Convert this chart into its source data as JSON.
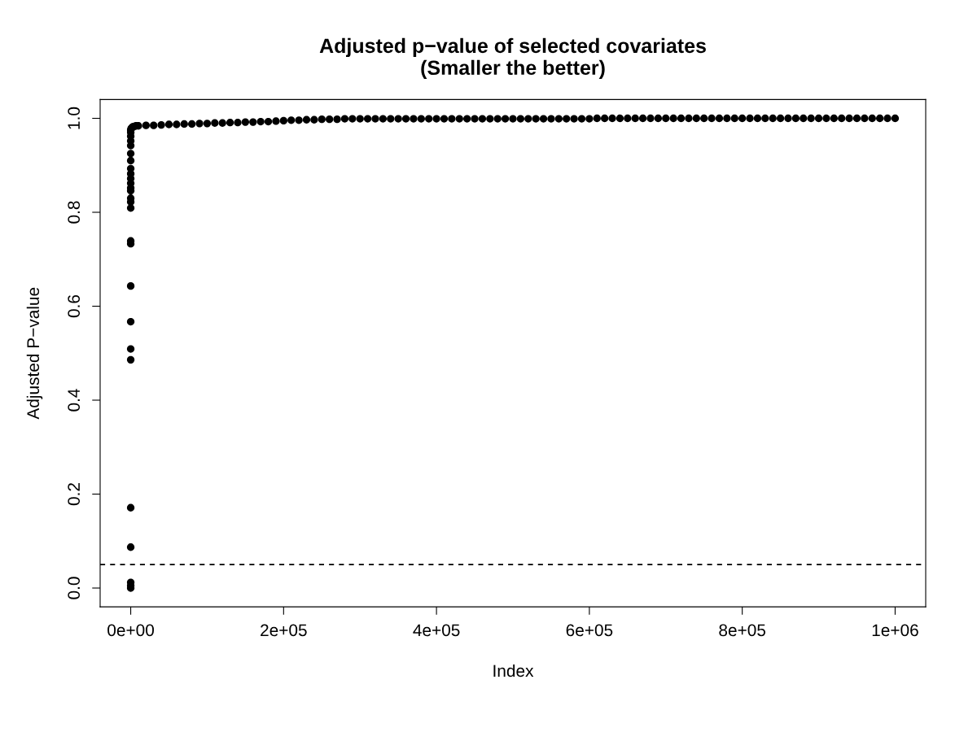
{
  "chart_data": {
    "type": "scatter",
    "title": "Adjusted p−value of selected covariates\n(Smaller the better)",
    "xlabel": "Index",
    "ylabel": "Adjusted P−value",
    "xlim": [
      -40000,
      1040000
    ],
    "ylim": [
      -0.04,
      1.04
    ],
    "xticks": [
      {
        "value": 0,
        "label": "0e+00"
      },
      {
        "value": 200000,
        "label": "2e+05"
      },
      {
        "value": 400000,
        "label": "4e+05"
      },
      {
        "value": 600000,
        "label": "6e+05"
      },
      {
        "value": 800000,
        "label": "8e+05"
      },
      {
        "value": 1000000,
        "label": "1e+06"
      }
    ],
    "yticks": [
      {
        "value": 0,
        "label": "0.0"
      },
      {
        "value": 0.2,
        "label": "0.2"
      },
      {
        "value": 0.4,
        "label": "0.4"
      },
      {
        "value": 0.6,
        "label": "0.6"
      },
      {
        "value": 0.8,
        "label": "0.8"
      },
      {
        "value": 1,
        "label": "1.0"
      }
    ],
    "grid": false,
    "legend": false,
    "marker": "circle",
    "ref_lines": [
      {
        "axis": "y",
        "value": 0.05,
        "line_style": "dashed",
        "color": "#000000"
      }
    ],
    "series": [
      {
        "color": "#000000",
        "x": [
          1,
          2,
          3,
          4,
          5,
          6,
          7,
          8,
          9,
          10,
          11,
          12,
          13,
          14,
          15,
          16,
          17,
          18,
          19,
          20,
          21,
          22,
          23,
          24,
          25,
          26,
          27,
          500,
          1000,
          2000,
          3000,
          5000,
          7000,
          10000,
          20000,
          30000,
          40000,
          50000,
          60000,
          70000,
          80000,
          90000,
          100000,
          110000,
          120000,
          130000,
          140000,
          150000,
          160000,
          170000,
          180000,
          190000,
          200000,
          210000,
          220000,
          230000,
          240000,
          250000,
          260000,
          270000,
          280000,
          290000,
          300000,
          310000,
          320000,
          330000,
          340000,
          350000,
          360000,
          370000,
          380000,
          390000,
          400000,
          410000,
          420000,
          430000,
          440000,
          450000,
          460000,
          470000,
          480000,
          490000,
          500000,
          510000,
          520000,
          530000,
          540000,
          550000,
          560000,
          570000,
          580000,
          590000,
          600000,
          610000,
          620000,
          630000,
          640000,
          650000,
          660000,
          670000,
          680000,
          690000,
          700000,
          710000,
          720000,
          730000,
          740000,
          750000,
          760000,
          770000,
          780000,
          790000,
          800000,
          810000,
          820000,
          830000,
          840000,
          850000,
          860000,
          870000,
          880000,
          890000,
          900000,
          910000,
          920000,
          930000,
          940000,
          950000,
          960000,
          970000,
          980000,
          990000,
          1000000
        ],
        "values": [
          0.0,
          0.005,
          0.012,
          0.087,
          0.171,
          0.486,
          0.509,
          0.567,
          0.643,
          0.733,
          0.739,
          0.809,
          0.822,
          0.83,
          0.846,
          0.852,
          0.862,
          0.872,
          0.882,
          0.893,
          0.91,
          0.925,
          0.942,
          0.952,
          0.962,
          0.97,
          0.975,
          0.978,
          0.979,
          0.981,
          0.982,
          0.983,
          0.984,
          0.984,
          0.985,
          0.985,
          0.986,
          0.987,
          0.987,
          0.988,
          0.988,
          0.989,
          0.989,
          0.99,
          0.99,
          0.991,
          0.991,
          0.992,
          0.992,
          0.993,
          0.993,
          0.994,
          0.995,
          0.996,
          0.996,
          0.997,
          0.997,
          0.998,
          0.998,
          0.998,
          0.999,
          0.999,
          0.999,
          0.999,
          0.999,
          0.999,
          0.999,
          0.999,
          0.999,
          0.999,
          0.999,
          0.999,
          0.999,
          0.999,
          0.999,
          0.999,
          0.999,
          0.999,
          0.999,
          0.999,
          0.999,
          0.999,
          0.999,
          0.999,
          0.999,
          0.999,
          0.999,
          0.999,
          0.999,
          0.999,
          0.999,
          0.999,
          0.999,
          1.0,
          1.0,
          1.0,
          1.0,
          1.0,
          1.0,
          1.0,
          1.0,
          1.0,
          1.0,
          1.0,
          1.0,
          1.0,
          1.0,
          1.0,
          1.0,
          1.0,
          1.0,
          1.0,
          1.0,
          1.0,
          1.0,
          1.0,
          1.0,
          1.0,
          1.0,
          1.0,
          1.0,
          1.0,
          1.0,
          1.0,
          1.0,
          1.0,
          1.0,
          1.0,
          1.0,
          1.0,
          1.0,
          1.0,
          1.0
        ]
      }
    ]
  }
}
